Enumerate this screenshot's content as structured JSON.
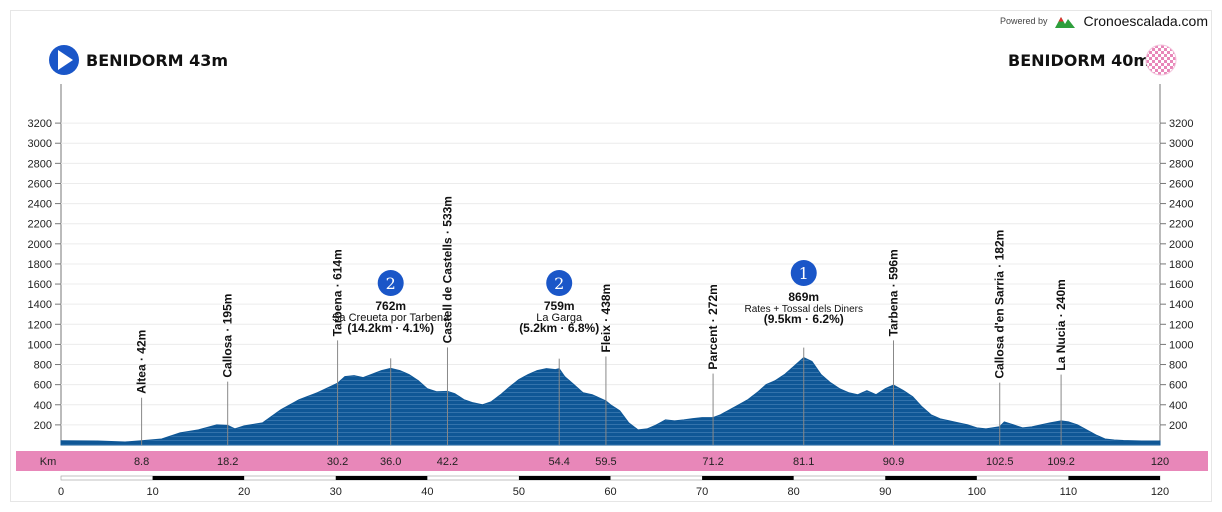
{
  "header": {
    "powered_by": "Powered by",
    "brand": "Cronoescalada.com",
    "start_label": "BENIDORM 43m",
    "finish_label": "BENIDORM 40m"
  },
  "colors": {
    "profile_fill": "#0f5796",
    "profile_stripe": "#4a86bb",
    "km_band": "#e887b9",
    "start_icon": "#1a56c8",
    "badge": "#1a56c8",
    "finish_check": "#e887b9"
  },
  "chart_data": {
    "type": "area",
    "xlabel": "Km",
    "xlim": [
      0,
      120
    ],
    "ylim": [
      0,
      3400
    ],
    "y_ticks": [
      200,
      400,
      600,
      800,
      1000,
      1200,
      1400,
      1600,
      1800,
      2000,
      2200,
      2400,
      2600,
      2800,
      3000,
      3200
    ],
    "x_ticks": [
      0,
      10,
      20,
      30,
      40,
      50,
      60,
      70,
      80,
      90,
      100,
      110,
      120
    ],
    "km_marks": [
      "8.8",
      "18.2",
      "30.2",
      "36.0",
      "42.2",
      "54.4",
      "59.5",
      "71.2",
      "81.1",
      "90.9",
      "102.5",
      "109.2",
      "120"
    ],
    "profile": {
      "x": [
        0,
        4,
        7,
        8.8,
        11,
        13,
        15,
        17,
        18.2,
        19,
        20,
        22,
        24,
        26,
        28,
        30.2,
        31,
        32,
        33,
        35,
        36,
        37,
        38,
        39,
        40,
        41,
        42.2,
        43,
        44,
        45,
        46,
        47,
        48,
        49,
        50,
        51,
        52,
        53,
        54,
        54.4,
        55,
        56,
        57,
        58,
        59.5,
        60,
        61,
        62,
        63,
        64,
        65,
        66,
        67,
        68,
        69,
        70,
        71.2,
        72,
        73,
        74,
        75,
        76,
        77,
        78,
        79,
        80,
        81.1,
        82,
        83,
        84,
        85,
        86,
        87,
        88,
        89,
        90,
        90.9,
        92,
        93,
        94,
        95,
        96,
        97,
        98,
        99,
        100,
        101,
        102.5,
        103,
        104,
        105,
        106,
        107,
        108,
        109.2,
        110,
        111,
        112,
        113,
        114,
        115,
        116,
        118,
        120
      ],
      "y": [
        43,
        40,
        30,
        42,
        60,
        120,
        150,
        200,
        195,
        160,
        190,
        220,
        350,
        450,
        520,
        614,
        680,
        690,
        670,
        740,
        762,
        740,
        700,
        640,
        560,
        530,
        533,
        510,
        450,
        420,
        400,
        430,
        500,
        580,
        650,
        700,
        740,
        760,
        750,
        759,
        680,
        600,
        520,
        500,
        438,
        400,
        340,
        220,
        150,
        160,
        200,
        250,
        240,
        250,
        262,
        272,
        272,
        300,
        350,
        400,
        450,
        520,
        600,
        640,
        700,
        780,
        869,
        830,
        700,
        620,
        560,
        520,
        500,
        540,
        500,
        560,
        596,
        540,
        480,
        380,
        300,
        260,
        240,
        220,
        200,
        170,
        160,
        182,
        230,
        200,
        170,
        180,
        200,
        220,
        240,
        230,
        200,
        150,
        100,
        60,
        50,
        45,
        40,
        40
      ]
    },
    "places": [
      {
        "km": 8.8,
        "label": "Altea · 42m",
        "alt": 42,
        "pole_top": 470
      },
      {
        "km": 18.2,
        "label": "Callosa · 195m",
        "alt": 195,
        "pole_top": 630
      },
      {
        "km": 30.2,
        "label": "Tarbena · 614m",
        "alt": 614,
        "pole_top": 1040
      },
      {
        "km": 42.2,
        "label": "Castell de Castells · 533m",
        "alt": 533,
        "pole_top": 970
      },
      {
        "km": 59.5,
        "label": "Fleix · 438m",
        "alt": 438,
        "pole_top": 880
      },
      {
        "km": 71.2,
        "label": "Parcent · 272m",
        "alt": 272,
        "pole_top": 710
      },
      {
        "km": 90.9,
        "label": "Tarbena · 596m",
        "alt": 596,
        "pole_top": 1040
      },
      {
        "km": 102.5,
        "label": "Callosa d'en Sarria · 182m",
        "alt": 182,
        "pole_top": 620
      },
      {
        "km": 109.2,
        "label": "La Nucia · 240m",
        "alt": 240,
        "pole_top": 700
      }
    ],
    "climbs": [
      {
        "km": 36.0,
        "category": "2",
        "alt_label": "762m",
        "name": "Sa Creueta por Tarbena",
        "stats": "(14.2km · 4.1%)",
        "alt": 762
      },
      {
        "km": 54.4,
        "category": "2",
        "alt_label": "759m",
        "name": "La Garga",
        "stats": "(5.2km · 6.8%)",
        "alt": 759
      },
      {
        "km": 81.1,
        "category": "1",
        "alt_label": "869m",
        "name": "Rates + Tossal dels Diners",
        "stats": "(9.5km · 6.2%)",
        "alt": 869
      }
    ]
  }
}
